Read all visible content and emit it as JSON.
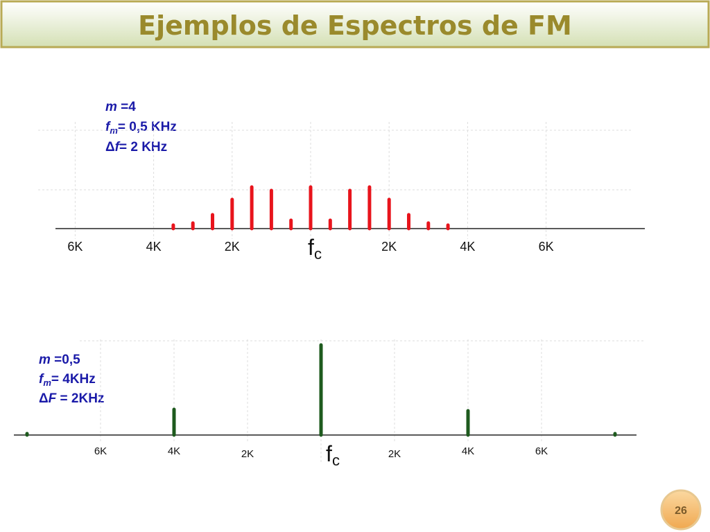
{
  "title": "Ejemplos de Espectros de FM",
  "page_number": "26",
  "spectra": [
    {
      "params": [
        [
          "m",
          " =4"
        ],
        [
          "f",
          "m",
          "= 0,5 KHz"
        ],
        [
          "Δ",
          "f",
          "= 2 KHz"
        ]
      ],
      "color": "#e8141c",
      "offsets": [
        -3.5,
        -3,
        -2.5,
        -2,
        -1.5,
        -1,
        -0.5,
        0,
        0.5,
        1,
        1.5,
        2,
        2.5,
        3,
        3.5
      ],
      "amplitudes": [
        5,
        8,
        20,
        42,
        60,
        55,
        12,
        60,
        12,
        55,
        60,
        42,
        20,
        8,
        5
      ],
      "ticks": [
        {
          "value": -6,
          "label": "6K"
        },
        {
          "value": -4,
          "label": "4K"
        },
        {
          "value": -2,
          "label": "2K"
        },
        {
          "value": 2,
          "label": "2K"
        },
        {
          "value": 4,
          "label": "4K"
        },
        {
          "value": 6,
          "label": "6K"
        }
      ],
      "carrier_label": [
        "f",
        "c"
      ]
    },
    {
      "params": [
        [
          "m",
          " =0,5"
        ],
        [
          "f",
          "m",
          "= 4KHz"
        ],
        [
          "Δ",
          "F",
          " = 2KHz"
        ]
      ],
      "color": "#1e5a1e",
      "offsets": [
        -8,
        -4,
        0,
        4,
        8
      ],
      "amplitudes": [
        2,
        37,
        130,
        35,
        2
      ],
      "ticks": [
        {
          "value": -6,
          "label": "6K"
        },
        {
          "value": -4,
          "label": "4K"
        },
        {
          "value": -2,
          "label": "2K"
        },
        {
          "value": 2,
          "label": "2K"
        },
        {
          "value": 4,
          "label": "4K"
        },
        {
          "value": 6,
          "label": "6K"
        }
      ],
      "carrier_label": [
        "f",
        "c"
      ]
    }
  ]
}
